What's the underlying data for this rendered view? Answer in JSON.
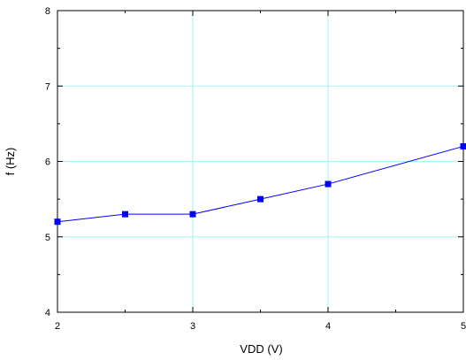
{
  "chart_data": {
    "type": "line",
    "title": "",
    "xlabel": "VDD (V)",
    "ylabel": "f (Hz)",
    "xlim": [
      2,
      5
    ],
    "ylim": [
      4,
      8
    ],
    "xticks": [
      2,
      3,
      4,
      5
    ],
    "yticks": [
      4,
      5,
      6,
      7,
      8
    ],
    "xtick_labels": [
      "2",
      "3",
      "4",
      "5"
    ],
    "ytick_labels": [
      "4",
      "5",
      "6",
      "7",
      "8"
    ],
    "grid": true,
    "legend": "none",
    "series": [
      {
        "x": [
          2.0,
          2.5,
          3.0,
          3.5,
          4.0,
          5.0
        ],
        "y": [
          5.2,
          5.3,
          5.3,
          5.5,
          5.7,
          6.2
        ],
        "marker": "square",
        "color": "#0000ff"
      }
    ],
    "colors": {
      "line": "#0000ff",
      "grid": "#a6f3f3",
      "axis": "#000000"
    }
  }
}
